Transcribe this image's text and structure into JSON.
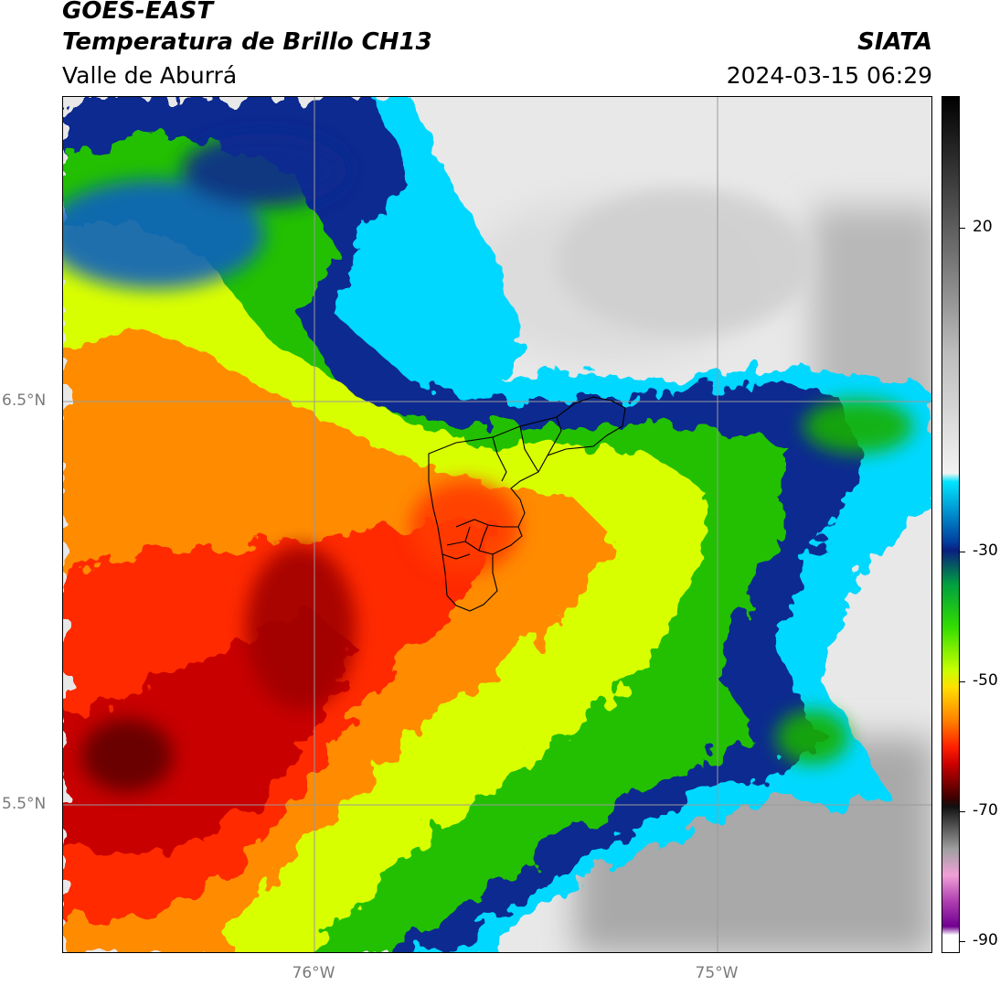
{
  "header": {
    "satellite": "GOES-EAST",
    "product": "Temperatura de Brillo CH13",
    "region": "Valle de Aburrá",
    "organization": "SIATA",
    "datetime": "2024-03-15 06:29"
  },
  "map": {
    "lat_labels": [
      "6.5°N",
      "5.5°N"
    ],
    "lon_labels": [
      "76°W",
      "75°W"
    ]
  },
  "colorbar": {
    "tick_labels": [
      "20",
      "-30",
      "-50",
      "-70",
      "-90"
    ],
    "colors": [
      "#000000",
      "#555555",
      "#bdbdbd",
      "#f2f2f2",
      "#00e5ff",
      "#0040a0",
      "#0a1f80",
      "#00a040",
      "#33dd00",
      "#c8ff00",
      "#ffe000",
      "#ff7f00",
      "#ff2000",
      "#cc0000",
      "#3d0000",
      "#111111",
      "#a0a0a0",
      "#f0a0d8",
      "#b040b0",
      "#700090",
      "#ffffff"
    ]
  }
}
